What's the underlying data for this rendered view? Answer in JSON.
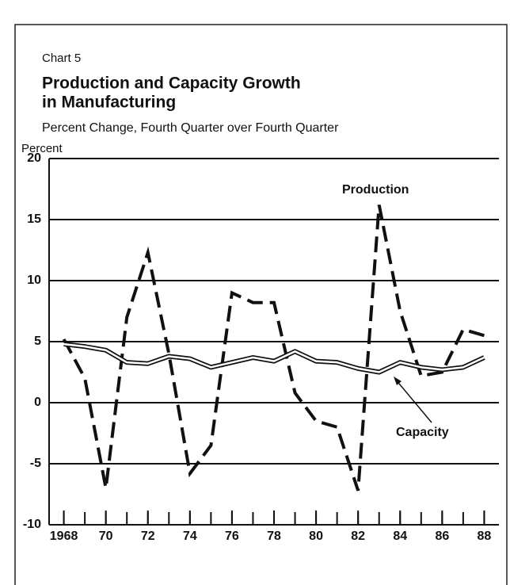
{
  "chart_data": {
    "type": "line",
    "label": "Chart 5",
    "title": [
      "Production and Capacity Growth",
      "in Manufacturing"
    ],
    "subtitle": "Percent Change, Fourth Quarter over Fourth Quarter",
    "y_label": "Percent",
    "x": [
      1968,
      1969,
      1970,
      1971,
      1972,
      1973,
      1974,
      1975,
      1976,
      1977,
      1978,
      1979,
      1980,
      1981,
      1982,
      1983,
      1984,
      1985,
      1986,
      1987,
      1988
    ],
    "series": [
      {
        "name": "Production",
        "color": "#111111",
        "style": "dashed",
        "values": [
          5.2,
          2.0,
          -7.0,
          7.0,
          12.3,
          4.0,
          -5.8,
          -3.5,
          9.0,
          8.2,
          8.2,
          0.8,
          -1.5,
          -2.0,
          -7.2,
          16.2,
          7.5,
          2.2,
          2.5,
          6.0,
          5.5
        ]
      },
      {
        "name": "Capacity",
        "color": "#111111",
        "style": "double",
        "values": [
          4.8,
          4.6,
          4.3,
          3.3,
          3.2,
          3.8,
          3.6,
          2.9,
          3.3,
          3.7,
          3.4,
          4.2,
          3.4,
          3.3,
          2.8,
          2.5,
          3.3,
          2.9,
          2.7,
          2.9,
          3.7
        ]
      }
    ],
    "xlim": [
      1967.3,
      1988.7
    ],
    "xticks": [
      {
        "value": 1968,
        "label": "1968"
      },
      {
        "value": 1970,
        "label": "70"
      },
      {
        "value": 1972,
        "label": "72"
      },
      {
        "value": 1974,
        "label": "74"
      },
      {
        "value": 1976,
        "label": "76"
      },
      {
        "value": 1978,
        "label": "78"
      },
      {
        "value": 1980,
        "label": "80"
      },
      {
        "value": 1982,
        "label": "82"
      },
      {
        "value": 1984,
        "label": "84"
      },
      {
        "value": 1986,
        "label": "86"
      },
      {
        "value": 1988,
        "label": "88"
      }
    ],
    "ylim": [
      -10,
      20
    ],
    "yticks": [
      -10,
      -5,
      0,
      5,
      10,
      15,
      20
    ],
    "grid": true
  }
}
